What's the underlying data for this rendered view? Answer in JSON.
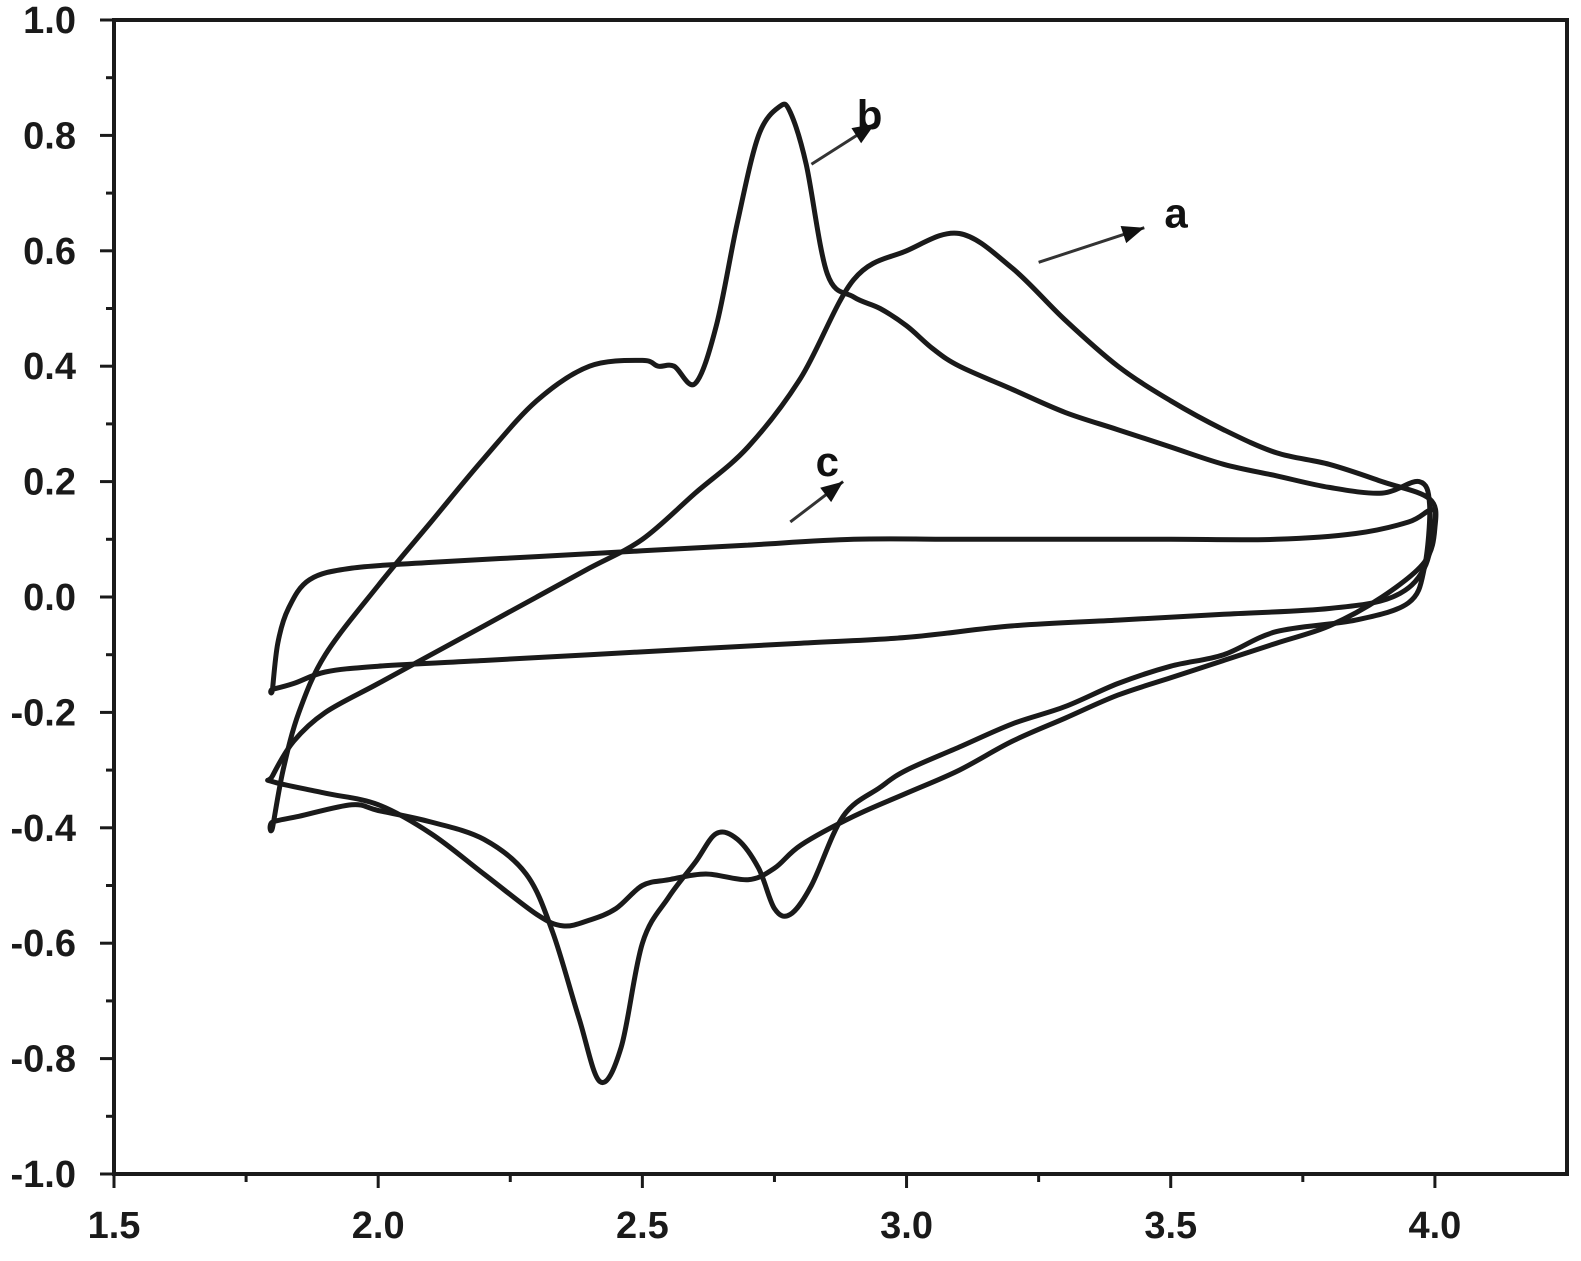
{
  "chart_data": {
    "type": "line",
    "title": "",
    "xlabel": "",
    "ylabel": "",
    "xlim": [
      1.5,
      4.25
    ],
    "ylim": [
      -1.0,
      1.0
    ],
    "x_ticks": [
      1.5,
      2.0,
      2.5,
      3.0,
      3.5,
      4.0
    ],
    "x_tick_labels": [
      "1.5",
      "2.0",
      "2.5",
      "3.0",
      "3.5",
      "4.0"
    ],
    "y_ticks": [
      -1.0,
      -0.8,
      -0.6,
      -0.4,
      -0.2,
      0.0,
      0.2,
      0.4,
      0.6,
      0.8,
      1.0
    ],
    "y_tick_labels": [
      "-1.0",
      "-0.8",
      "-0.6",
      "-0.4",
      "-0.2",
      "0.0",
      "0.2",
      "0.4",
      "0.6",
      "0.8",
      "1.0"
    ],
    "grid": false,
    "legend": "none",
    "line_color": "#1a1a1a",
    "series": [
      {
        "name": "a",
        "label_x": 3.51,
        "label_y": 0.64,
        "arrow_from": [
          3.25,
          0.58
        ],
        "arrow_to": [
          3.45,
          0.64
        ],
        "closed": true,
        "x": [
          1.8,
          1.84,
          1.9,
          2.0,
          2.1,
          2.2,
          2.3,
          2.4,
          2.5,
          2.6,
          2.7,
          2.8,
          2.9,
          3.0,
          3.1,
          3.2,
          3.3,
          3.4,
          3.5,
          3.6,
          3.7,
          3.8,
          3.9,
          3.99,
          4.0,
          3.98,
          3.9,
          3.8,
          3.7,
          3.6,
          3.5,
          3.4,
          3.3,
          3.2,
          3.1,
          3.0,
          2.9,
          2.8,
          2.75,
          2.7,
          2.62,
          2.55,
          2.5,
          2.45,
          2.4,
          2.35,
          2.3,
          2.2,
          2.1,
          2.0,
          1.9,
          1.8
        ],
        "y": [
          -0.31,
          -0.25,
          -0.2,
          -0.15,
          -0.1,
          -0.05,
          0.0,
          0.05,
          0.1,
          0.18,
          0.26,
          0.38,
          0.55,
          0.6,
          0.63,
          0.57,
          0.48,
          0.4,
          0.34,
          0.29,
          0.25,
          0.23,
          0.2,
          0.17,
          0.12,
          0.06,
          0.0,
          -0.05,
          -0.08,
          -0.11,
          -0.14,
          -0.17,
          -0.21,
          -0.25,
          -0.3,
          -0.34,
          -0.38,
          -0.43,
          -0.47,
          -0.49,
          -0.48,
          -0.49,
          -0.5,
          -0.54,
          -0.56,
          -0.57,
          -0.55,
          -0.48,
          -0.41,
          -0.36,
          -0.34,
          -0.32
        ]
      },
      {
        "name": "b",
        "label_x": 2.93,
        "label_y": 0.81,
        "arrow_from": [
          2.82,
          0.75
        ],
        "arrow_to": [
          2.94,
          0.82
        ],
        "closed": true,
        "x": [
          1.8,
          1.82,
          1.85,
          1.9,
          2.0,
          2.1,
          2.2,
          2.3,
          2.4,
          2.5,
          2.53,
          2.56,
          2.6,
          2.64,
          2.68,
          2.72,
          2.76,
          2.78,
          2.81,
          2.85,
          2.9,
          2.95,
          3.0,
          3.05,
          3.1,
          3.2,
          3.3,
          3.4,
          3.5,
          3.6,
          3.7,
          3.8,
          3.9,
          3.97,
          3.99,
          3.98,
          3.95,
          3.85,
          3.7,
          3.6,
          3.5,
          3.4,
          3.3,
          3.2,
          3.1,
          3.0,
          2.95,
          2.88,
          2.82,
          2.78,
          2.75,
          2.72,
          2.68,
          2.64,
          2.6,
          2.55,
          2.5,
          2.46,
          2.42,
          2.38,
          2.33,
          2.28,
          2.2,
          2.1,
          2.0,
          1.95,
          1.85,
          1.8
        ],
        "y": [
          -0.4,
          -0.3,
          -0.2,
          -0.1,
          0.02,
          0.13,
          0.24,
          0.34,
          0.4,
          0.41,
          0.4,
          0.4,
          0.37,
          0.47,
          0.65,
          0.8,
          0.85,
          0.84,
          0.75,
          0.56,
          0.52,
          0.5,
          0.47,
          0.43,
          0.4,
          0.36,
          0.32,
          0.29,
          0.26,
          0.23,
          0.21,
          0.19,
          0.18,
          0.2,
          0.16,
          0.05,
          -0.01,
          -0.04,
          -0.06,
          -0.1,
          -0.12,
          -0.15,
          -0.19,
          -0.22,
          -0.26,
          -0.3,
          -0.33,
          -0.38,
          -0.5,
          -0.55,
          -0.54,
          -0.47,
          -0.42,
          -0.41,
          -0.46,
          -0.52,
          -0.6,
          -0.78,
          -0.84,
          -0.73,
          -0.58,
          -0.48,
          -0.42,
          -0.39,
          -0.37,
          -0.36,
          -0.38,
          -0.39
        ]
      },
      {
        "name": "c",
        "label_x": 2.85,
        "label_y": 0.21,
        "arrow_from": [
          2.78,
          0.13
        ],
        "arrow_to": [
          2.88,
          0.2
        ],
        "closed": true,
        "x": [
          1.8,
          1.81,
          1.83,
          1.87,
          1.95,
          2.1,
          2.3,
          2.5,
          2.7,
          2.9,
          3.1,
          3.3,
          3.5,
          3.7,
          3.85,
          3.95,
          3.99,
          4.0,
          3.98,
          3.92,
          3.8,
          3.6,
          3.4,
          3.2,
          3.0,
          2.8,
          2.6,
          2.4,
          2.2,
          2.0,
          1.9,
          1.84,
          1.8
        ],
        "y": [
          -0.16,
          -0.08,
          -0.02,
          0.03,
          0.05,
          0.06,
          0.07,
          0.08,
          0.09,
          0.1,
          0.1,
          0.1,
          0.1,
          0.1,
          0.11,
          0.13,
          0.15,
          0.14,
          0.05,
          0.0,
          -0.02,
          -0.03,
          -0.04,
          -0.05,
          -0.07,
          -0.08,
          -0.09,
          -0.1,
          -0.11,
          -0.12,
          -0.13,
          -0.15,
          -0.16
        ]
      }
    ]
  }
}
